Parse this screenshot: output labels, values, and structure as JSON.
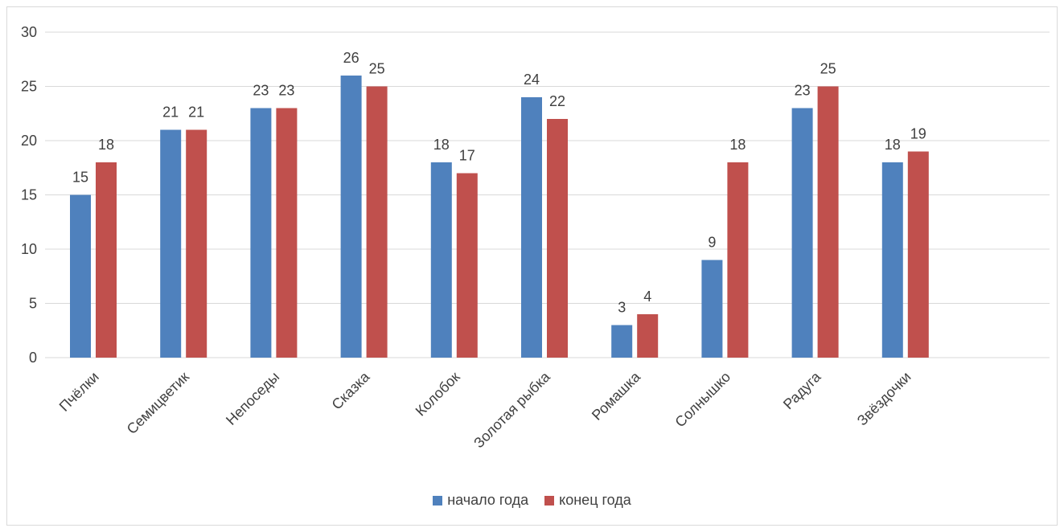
{
  "chart_data": {
    "type": "bar",
    "title": "",
    "xlabel": "",
    "ylabel": "",
    "categories": [
      "Пчёлки",
      "Семицветик",
      "Непоседы",
      "Сказка",
      "Колобок",
      "Золотая рыбка",
      "Ромашка",
      "Солнышко",
      "Радуга",
      "Звёздочки"
    ],
    "series": [
      {
        "name": "начало года",
        "color": "#4f81bd",
        "values": [
          15,
          21,
          23,
          26,
          18,
          24,
          3,
          9,
          23,
          18
        ]
      },
      {
        "name": "конец года",
        "color": "#c0504d",
        "values": [
          18,
          21,
          23,
          25,
          17,
          22,
          4,
          18,
          25,
          19
        ]
      }
    ],
    "ylim": [
      0,
      30
    ],
    "yticks": [
      0,
      5,
      10,
      15,
      20,
      25,
      30
    ],
    "grid": true,
    "legend_position": "bottom",
    "data_labels": true
  }
}
